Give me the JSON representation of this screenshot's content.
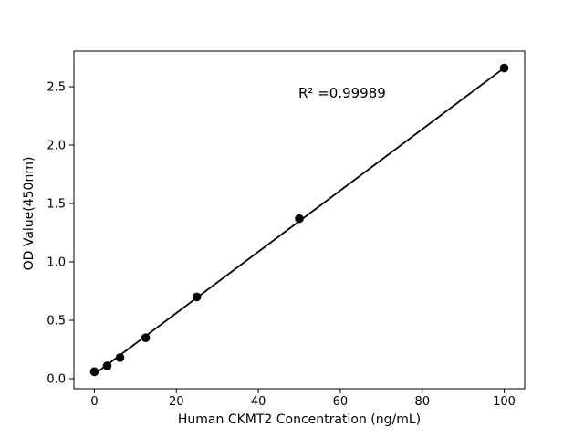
{
  "chart_data": {
    "type": "scatter",
    "title": "",
    "xlabel": "Human CKMT2 Concentration (ng/mL)",
    "ylabel": "OD Value(450nm)",
    "annotation": "R² =0.99989",
    "r_squared": 0.99989,
    "x": [
      0,
      3.125,
      6.25,
      12.5,
      25,
      50,
      100
    ],
    "y": [
      0.06,
      0.11,
      0.18,
      0.35,
      0.7,
      1.37,
      2.66
    ],
    "fit_line": {
      "slope": 0.02624,
      "intercept": 0.037,
      "x_start": 0,
      "x_end": 100
    },
    "xticks": [
      0,
      20,
      40,
      60,
      80,
      100
    ],
    "xtick_labels": [
      "0",
      "20",
      "40",
      "60",
      "80",
      "100"
    ],
    "yticks": [
      0.0,
      0.5,
      1.0,
      1.5,
      2.0,
      2.5
    ],
    "ytick_labels": [
      "0.0",
      "0.5",
      "1.0",
      "1.5",
      "2.0",
      "2.5"
    ],
    "xlim": [
      -5,
      105
    ],
    "ylim": [
      -0.086,
      2.805
    ],
    "grid": false,
    "legend": null,
    "marker_color": "#000000",
    "line_color": "#000000",
    "axis_color": "#000000",
    "background": "#ffffff"
  }
}
